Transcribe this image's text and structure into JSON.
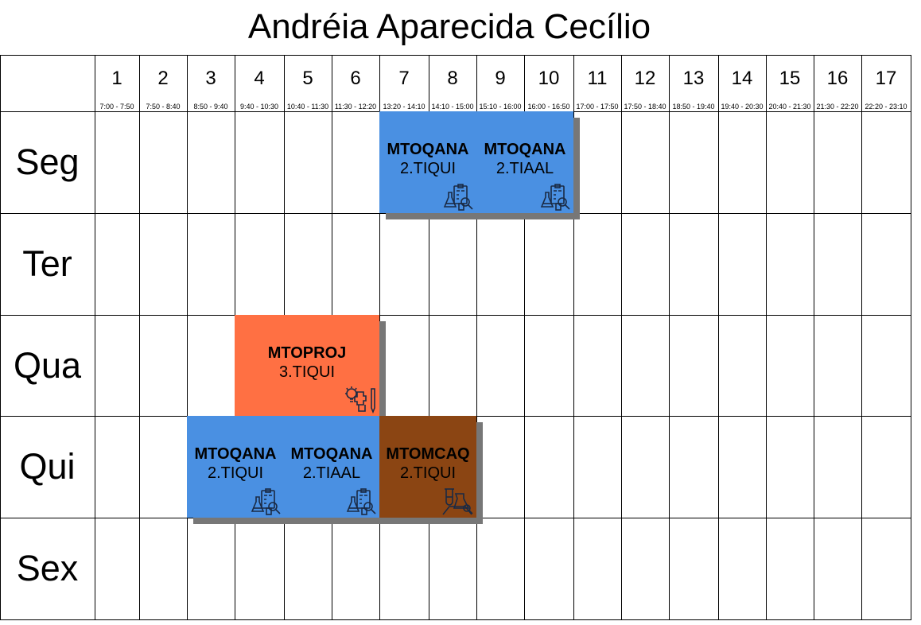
{
  "title": "Andréia Aparecida Cecílio",
  "periods": [
    {
      "num": "1",
      "time": "7:00 - 7:50"
    },
    {
      "num": "2",
      "time": "7:50 - 8:40"
    },
    {
      "num": "3",
      "time": "8:50 - 9:40"
    },
    {
      "num": "4",
      "time": "9:40 - 10:30"
    },
    {
      "num": "5",
      "time": "10:40 - 11:30"
    },
    {
      "num": "6",
      "time": "11:30 - 12:20"
    },
    {
      "num": "7",
      "time": "13:20 - 14:10"
    },
    {
      "num": "8",
      "time": "14:10 - 15:00"
    },
    {
      "num": "9",
      "time": "15:10 - 16:00"
    },
    {
      "num": "10",
      "time": "16:00 - 16:50"
    },
    {
      "num": "11",
      "time": "17:00 - 17:50"
    },
    {
      "num": "12",
      "time": "17:50 - 18:40"
    },
    {
      "num": "13",
      "time": "18:50 - 19:40"
    },
    {
      "num": "14",
      "time": "19:40 - 20:30"
    },
    {
      "num": "15",
      "time": "20:40 - 21:30"
    },
    {
      "num": "16",
      "time": "21:30 - 22:20"
    },
    {
      "num": "17",
      "time": "22:20 - 23:10"
    }
  ],
  "days": [
    "Seg",
    "Ter",
    "Qua",
    "Qui",
    "Sex"
  ],
  "lessons": [
    {
      "code": "MTOQANA",
      "class": "2.TIQUI",
      "color": "#4a90e2",
      "icon": "lab-analysis-icon"
    },
    {
      "code": "MTOQANA",
      "class": "2.TIAAL",
      "color": "#4a90e2",
      "icon": "lab-analysis-icon"
    },
    {
      "code": "MTOPROJ",
      "class": "3.TIQUI",
      "color": "#ff7043",
      "icon": "project-idea-icon"
    },
    {
      "code": "MTOQANA",
      "class": "2.TIQUI",
      "color": "#4a90e2",
      "icon": "lab-analysis-icon"
    },
    {
      "code": "MTOQANA",
      "class": "2.TIAAL",
      "color": "#4a90e2",
      "icon": "lab-analysis-icon"
    },
    {
      "code": "MTOMCAQ",
      "class": "2.TIQUI",
      "color": "#8b4513",
      "icon": "chemistry-lab-icon"
    }
  ]
}
